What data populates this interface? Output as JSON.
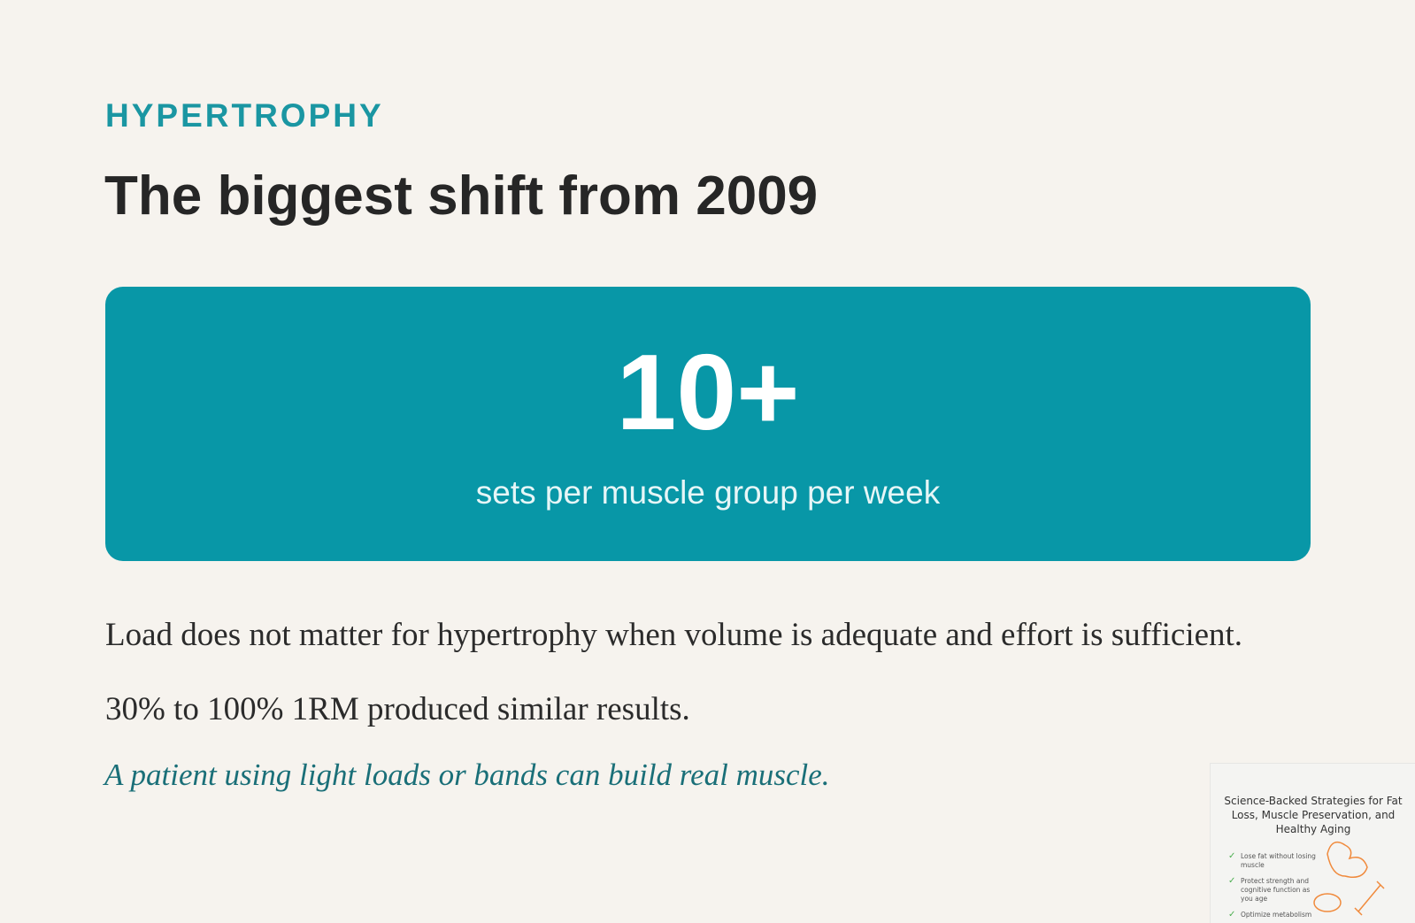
{
  "eyebrow": "HYPERTROPHY",
  "title": "The biggest shift from 2009",
  "stat": {
    "value": "10+",
    "caption": "sets per muscle group per week"
  },
  "paragraphs": [
    "Load does not matter for hypertrophy when volume is adequate and effort is sufficient.",
    "30% to 100% 1RM produced similar results."
  ],
  "emphasis": "A patient using light loads or bands can build real muscle.",
  "thumbnail": {
    "title": "Science-Backed Strategies for Fat Loss, Muscle Preservation, and Healthy Aging",
    "items": [
      "Lose fat without losing muscle",
      "Protect strength and cognitive function as you age",
      "Optimize metabolism"
    ]
  }
}
